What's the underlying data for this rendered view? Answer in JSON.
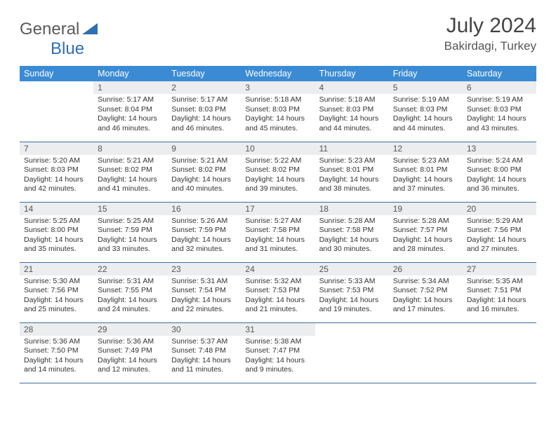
{
  "logo": {
    "text1": "General",
    "text2": "Blue",
    "color1": "#6a6a6a",
    "color2": "#2f6fb3"
  },
  "title": "July 2024",
  "location": "Bakirdagi, Turkey",
  "header_bg": "#3b8bd4",
  "row_border": "#3b6da0",
  "daynum_bg": "#ebedef",
  "weekdays": [
    "Sunday",
    "Monday",
    "Tuesday",
    "Wednesday",
    "Thursday",
    "Friday",
    "Saturday"
  ],
  "weeks": [
    [
      {
        "n": "",
        "sr": "",
        "ss": "",
        "dl": ""
      },
      {
        "n": "1",
        "sr": "5:17 AM",
        "ss": "8:04 PM",
        "dl": "14 hours and 46 minutes."
      },
      {
        "n": "2",
        "sr": "5:17 AM",
        "ss": "8:03 PM",
        "dl": "14 hours and 46 minutes."
      },
      {
        "n": "3",
        "sr": "5:18 AM",
        "ss": "8:03 PM",
        "dl": "14 hours and 45 minutes."
      },
      {
        "n": "4",
        "sr": "5:18 AM",
        "ss": "8:03 PM",
        "dl": "14 hours and 44 minutes."
      },
      {
        "n": "5",
        "sr": "5:19 AM",
        "ss": "8:03 PM",
        "dl": "14 hours and 44 minutes."
      },
      {
        "n": "6",
        "sr": "5:19 AM",
        "ss": "8:03 PM",
        "dl": "14 hours and 43 minutes."
      }
    ],
    [
      {
        "n": "7",
        "sr": "5:20 AM",
        "ss": "8:03 PM",
        "dl": "14 hours and 42 minutes."
      },
      {
        "n": "8",
        "sr": "5:21 AM",
        "ss": "8:02 PM",
        "dl": "14 hours and 41 minutes."
      },
      {
        "n": "9",
        "sr": "5:21 AM",
        "ss": "8:02 PM",
        "dl": "14 hours and 40 minutes."
      },
      {
        "n": "10",
        "sr": "5:22 AM",
        "ss": "8:02 PM",
        "dl": "14 hours and 39 minutes."
      },
      {
        "n": "11",
        "sr": "5:23 AM",
        "ss": "8:01 PM",
        "dl": "14 hours and 38 minutes."
      },
      {
        "n": "12",
        "sr": "5:23 AM",
        "ss": "8:01 PM",
        "dl": "14 hours and 37 minutes."
      },
      {
        "n": "13",
        "sr": "5:24 AM",
        "ss": "8:00 PM",
        "dl": "14 hours and 36 minutes."
      }
    ],
    [
      {
        "n": "14",
        "sr": "5:25 AM",
        "ss": "8:00 PM",
        "dl": "14 hours and 35 minutes."
      },
      {
        "n": "15",
        "sr": "5:25 AM",
        "ss": "7:59 PM",
        "dl": "14 hours and 33 minutes."
      },
      {
        "n": "16",
        "sr": "5:26 AM",
        "ss": "7:59 PM",
        "dl": "14 hours and 32 minutes."
      },
      {
        "n": "17",
        "sr": "5:27 AM",
        "ss": "7:58 PM",
        "dl": "14 hours and 31 minutes."
      },
      {
        "n": "18",
        "sr": "5:28 AM",
        "ss": "7:58 PM",
        "dl": "14 hours and 30 minutes."
      },
      {
        "n": "19",
        "sr": "5:28 AM",
        "ss": "7:57 PM",
        "dl": "14 hours and 28 minutes."
      },
      {
        "n": "20",
        "sr": "5:29 AM",
        "ss": "7:56 PM",
        "dl": "14 hours and 27 minutes."
      }
    ],
    [
      {
        "n": "21",
        "sr": "5:30 AM",
        "ss": "7:56 PM",
        "dl": "14 hours and 25 minutes."
      },
      {
        "n": "22",
        "sr": "5:31 AM",
        "ss": "7:55 PM",
        "dl": "14 hours and 24 minutes."
      },
      {
        "n": "23",
        "sr": "5:31 AM",
        "ss": "7:54 PM",
        "dl": "14 hours and 22 minutes."
      },
      {
        "n": "24",
        "sr": "5:32 AM",
        "ss": "7:53 PM",
        "dl": "14 hours and 21 minutes."
      },
      {
        "n": "25",
        "sr": "5:33 AM",
        "ss": "7:53 PM",
        "dl": "14 hours and 19 minutes."
      },
      {
        "n": "26",
        "sr": "5:34 AM",
        "ss": "7:52 PM",
        "dl": "14 hours and 17 minutes."
      },
      {
        "n": "27",
        "sr": "5:35 AM",
        "ss": "7:51 PM",
        "dl": "14 hours and 16 minutes."
      }
    ],
    [
      {
        "n": "28",
        "sr": "5:36 AM",
        "ss": "7:50 PM",
        "dl": "14 hours and 14 minutes."
      },
      {
        "n": "29",
        "sr": "5:36 AM",
        "ss": "7:49 PM",
        "dl": "14 hours and 12 minutes."
      },
      {
        "n": "30",
        "sr": "5:37 AM",
        "ss": "7:48 PM",
        "dl": "14 hours and 11 minutes."
      },
      {
        "n": "31",
        "sr": "5:38 AM",
        "ss": "7:47 PM",
        "dl": "14 hours and 9 minutes."
      },
      {
        "n": "",
        "sr": "",
        "ss": "",
        "dl": ""
      },
      {
        "n": "",
        "sr": "",
        "ss": "",
        "dl": ""
      },
      {
        "n": "",
        "sr": "",
        "ss": "",
        "dl": ""
      }
    ]
  ],
  "labels": {
    "sunrise": "Sunrise: ",
    "sunset": "Sunset: ",
    "daylight": "Daylight: "
  }
}
